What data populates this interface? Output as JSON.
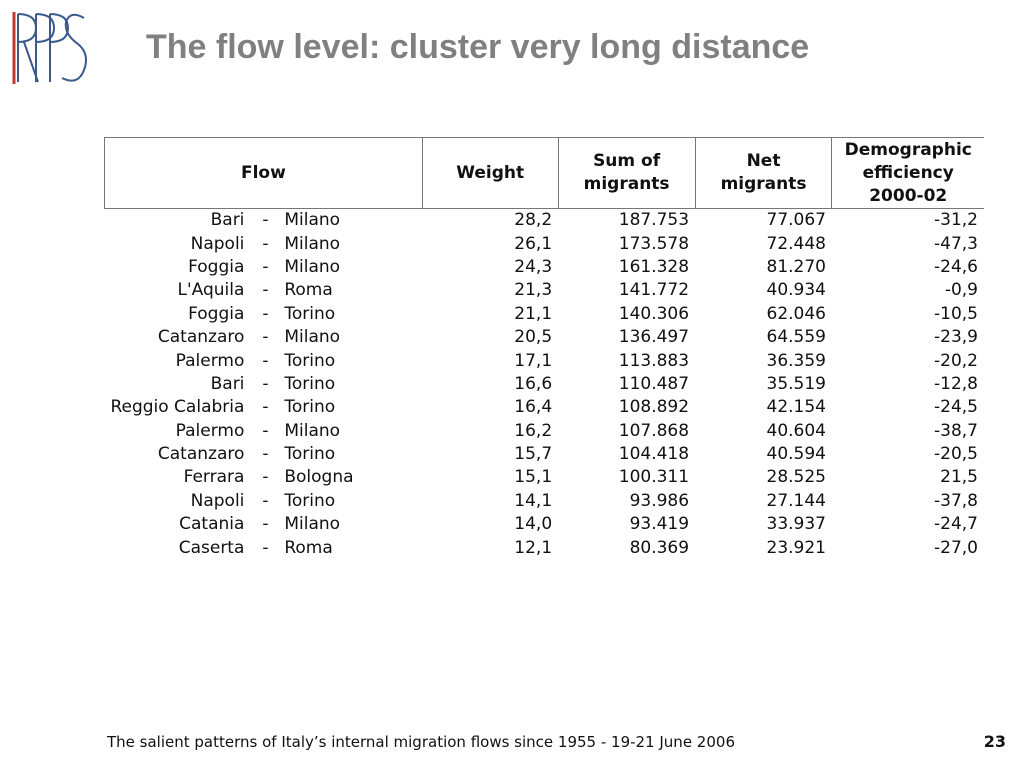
{
  "slide": {
    "title": "The flow level: cluster very long distance",
    "footer": "The salient patterns of Italy’s internal migration flows since 1955 - 19-21 June 2006",
    "page_number": "23",
    "logo_text": "RPPS",
    "colors": {
      "title": "#808080",
      "logo": "#3a5a8c",
      "logo_accent": "#c0392b"
    }
  },
  "table": {
    "headers": {
      "flow": "Flow",
      "weight": "Weight",
      "sum_line1": "Sum of",
      "sum_line2": "migrants",
      "net_line1": "Net",
      "net_line2": "migrants",
      "demo_line1": "Demographic",
      "demo_line2": "efficiency",
      "demo_line3": "2000-02"
    },
    "rows": [
      {
        "origin": "Bari",
        "sep": "-",
        "dest": "Milano",
        "weight": "28,2",
        "sum": "187.753",
        "net": "77.067",
        "eff": "-31,2"
      },
      {
        "origin": "Napoli",
        "sep": "-",
        "dest": "Milano",
        "weight": "26,1",
        "sum": "173.578",
        "net": "72.448",
        "eff": "-47,3"
      },
      {
        "origin": "Foggia",
        "sep": "-",
        "dest": "Milano",
        "weight": "24,3",
        "sum": "161.328",
        "net": "81.270",
        "eff": "-24,6"
      },
      {
        "origin": "L'Aquila",
        "sep": "-",
        "dest": "Roma",
        "weight": "21,3",
        "sum": "141.772",
        "net": "40.934",
        "eff": "-0,9"
      },
      {
        "origin": "Foggia",
        "sep": "-",
        "dest": "Torino",
        "weight": "21,1",
        "sum": "140.306",
        "net": "62.046",
        "eff": "-10,5"
      },
      {
        "origin": "Catanzaro",
        "sep": "-",
        "dest": "Milano",
        "weight": "20,5",
        "sum": "136.497",
        "net": "64.559",
        "eff": "-23,9"
      },
      {
        "origin": "Palermo",
        "sep": "-",
        "dest": "Torino",
        "weight": "17,1",
        "sum": "113.883",
        "net": "36.359",
        "eff": "-20,2"
      },
      {
        "origin": "Bari",
        "sep": "-",
        "dest": "Torino",
        "weight": "16,6",
        "sum": "110.487",
        "net": "35.519",
        "eff": "-12,8"
      },
      {
        "origin": "Reggio Calabria",
        "sep": "-",
        "dest": "Torino",
        "weight": "16,4",
        "sum": "108.892",
        "net": "42.154",
        "eff": "-24,5",
        "wrap": true
      },
      {
        "origin": "Palermo",
        "sep": "-",
        "dest": "Milano",
        "weight": "16,2",
        "sum": "107.868",
        "net": "40.604",
        "eff": "-38,7"
      },
      {
        "origin": "Catanzaro",
        "sep": "-",
        "dest": "Torino",
        "weight": "15,7",
        "sum": "104.418",
        "net": "40.594",
        "eff": "-20,5"
      },
      {
        "origin": "Ferrara",
        "sep": "-",
        "dest": "Bologna",
        "weight": "15,1",
        "sum": "100.311",
        "net": "28.525",
        "eff": "21,5"
      },
      {
        "origin": "Napoli",
        "sep": "-",
        "dest": "Torino",
        "weight": "14,1",
        "sum": "93.986",
        "net": "27.144",
        "eff": "-37,8"
      },
      {
        "origin": "Catania",
        "sep": "-",
        "dest": "Milano",
        "weight": "14,0",
        "sum": "93.419",
        "net": "33.937",
        "eff": "-24,7"
      },
      {
        "origin": "Caserta",
        "sep": "-",
        "dest": "Roma",
        "weight": "12,1",
        "sum": "80.369",
        "net": "23.921",
        "eff": "-27,0"
      }
    ]
  }
}
